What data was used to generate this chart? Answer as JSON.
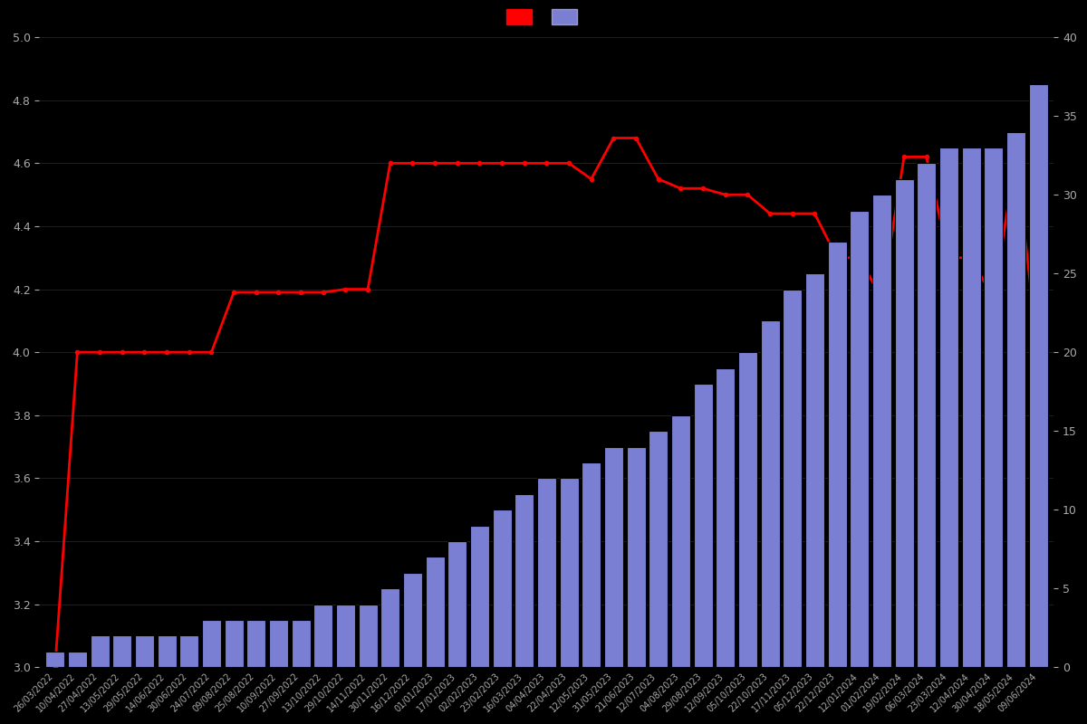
{
  "background_color": "#000000",
  "text_color": "#aaaaaa",
  "grid_color": "#2a2a2a",
  "bar_color": "#7b7fd4",
  "bar_edge_color": "#000000",
  "line_color": "#ff0000",
  "line_marker": "o",
  "line_markersize": 3,
  "left_ylim": [
    3.0,
    5.0
  ],
  "right_ylim": [
    0,
    40
  ],
  "left_yticks": [
    3.0,
    3.2,
    3.4,
    3.6,
    3.8,
    4.0,
    4.2,
    4.4,
    4.6,
    4.8,
    5.0
  ],
  "right_yticks": [
    0,
    5,
    10,
    15,
    20,
    25,
    30,
    35,
    40
  ],
  "dates": [
    "26/03/2022",
    "10/04/2022",
    "27/04/2022",
    "13/05/2022",
    "29/05/2022",
    "14/06/2022",
    "30/06/2022",
    "24/07/2022",
    "09/08/2022",
    "25/08/2022",
    "10/09/2022",
    "27/09/2022",
    "13/10/2022",
    "29/10/2022",
    "14/11/2022",
    "30/11/2022",
    "16/12/2022",
    "01/01/2023",
    "17/01/2023",
    "02/02/2023",
    "23/02/2023",
    "16/03/2023",
    "04/04/2023",
    "22/04/2023",
    "12/05/2023",
    "31/05/2023",
    "21/06/2023",
    "12/07/2023",
    "04/08/2023",
    "29/08/2023",
    "12/09/2023",
    "05/10/2023",
    "22/10/2023",
    "17/11/2023",
    "05/12/2023",
    "22/12/2023",
    "12/01/2024",
    "01/02/2024",
    "19/02/2024",
    "06/03/2024",
    "23/03/2024",
    "12/04/2024",
    "30/04/2024",
    "18/05/2024",
    "09/06/2024"
  ],
  "bar_values": [
    1,
    1,
    2,
    2,
    2,
    2,
    2,
    3,
    3,
    3,
    3,
    3,
    4,
    4,
    4,
    5,
    6,
    7,
    8,
    9,
    10,
    11,
    12,
    12,
    13,
    14,
    14,
    15,
    16,
    18,
    19,
    20,
    22,
    24,
    25,
    27,
    29,
    30,
    31,
    32,
    33,
    33,
    33,
    34,
    37
  ],
  "line_values": [
    3.0,
    4.0,
    4.0,
    4.0,
    4.0,
    4.0,
    4.0,
    4.0,
    4.19,
    4.19,
    4.19,
    4.19,
    4.19,
    4.2,
    4.2,
    4.6,
    4.6,
    4.6,
    4.6,
    4.6,
    4.6,
    4.6,
    4.6,
    4.6,
    4.55,
    4.68,
    4.68,
    4.55,
    4.52,
    4.52,
    4.5,
    4.5,
    4.44,
    4.44,
    4.44,
    4.3,
    4.3,
    4.17,
    4.62,
    4.62,
    4.3,
    4.3,
    4.17,
    4.62,
    4.0
  ]
}
